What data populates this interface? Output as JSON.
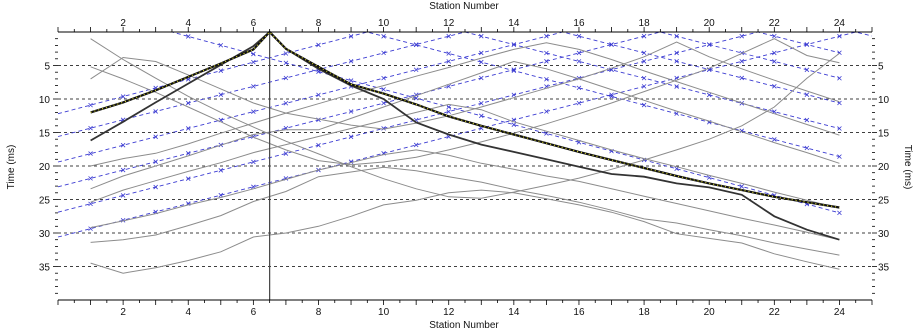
{
  "chart_data": {
    "type": "line",
    "xlabel_top": "Station Number",
    "xlabel_bottom": "Station Number",
    "ylabel_left": "Time (ms)",
    "ylabel_right": "Time (ms)",
    "xlim": [
      0,
      25
    ],
    "ylim": [
      0,
      40
    ],
    "y_inverted": true,
    "x_ticks": [
      2,
      4,
      6,
      8,
      10,
      12,
      14,
      16,
      18,
      20,
      22,
      24
    ],
    "y_ticks": [
      5,
      10,
      15,
      20,
      25,
      30,
      35
    ],
    "grid": "horizontal-dashed",
    "colors": {
      "observed": "#8c8c8c",
      "picked": "#333333",
      "model": "#3c3cd2",
      "highlight": "#d6d62a"
    },
    "shot_station": 6.5,
    "highlight_series": {
      "x": [
        1,
        2,
        3,
        4,
        5,
        6,
        6.5,
        7,
        8,
        9,
        10,
        11,
        12,
        13,
        14,
        15,
        16,
        17,
        18,
        19,
        20,
        21,
        22,
        23,
        24
      ],
      "y": [
        12,
        10.5,
        8.7,
        6.7,
        4.7,
        2.6,
        0,
        2.5,
        5.2,
        7.8,
        9.2,
        10.8,
        12.6,
        14.0,
        15.3,
        16.6,
        17.9,
        19.1,
        20.3,
        21.5,
        22.6,
        23.6,
        24.6,
        25.4,
        26.2
      ]
    },
    "picked_series": {
      "x": [
        1,
        2,
        3,
        4,
        5,
        6,
        6.5,
        7,
        8,
        9,
        10,
        11,
        12,
        13,
        14,
        15,
        16,
        17,
        18,
        19,
        20,
        21,
        22,
        23,
        24
      ],
      "y": [
        16.2,
        13.4,
        10.5,
        7.7,
        4.9,
        2.1,
        0,
        2.5,
        5.5,
        8.0,
        10.0,
        13.5,
        15.3,
        16.8,
        17.9,
        19.0,
        20.1,
        21.2,
        21.6,
        22.6,
        23.2,
        24.3,
        27.5,
        29.5,
        31.0
      ]
    },
    "observed_series": [
      {
        "x": [
          1,
          2,
          3,
          4,
          5,
          6,
          7,
          8,
          9,
          10,
          11,
          12,
          13,
          14,
          15,
          16,
          17,
          18,
          19,
          20,
          21,
          22,
          23,
          24
        ],
        "y": [
          34.5,
          36.0,
          35.2,
          34.1,
          32.8,
          30.6,
          30.0,
          29.0,
          27.5,
          25.8,
          25.1,
          24.0,
          23.6,
          24.0,
          24.9,
          25.8,
          26.9,
          28.3,
          30.1,
          30.8,
          31.5,
          33.1,
          34.3,
          35.4
        ]
      },
      {
        "x": [
          1,
          2,
          3,
          4,
          5,
          6,
          7,
          8,
          9,
          10,
          11,
          12,
          13,
          14,
          15,
          16,
          17,
          18,
          19,
          20,
          21,
          22,
          23,
          24
        ],
        "y": [
          31.4,
          31.0,
          30.3,
          28.9,
          27.4,
          25.3,
          23.8,
          21.6,
          20.9,
          20.2,
          20.7,
          21.6,
          22.4,
          23.5,
          24.4,
          25.4,
          26.6,
          27.9,
          28.5,
          29.5,
          30.4,
          31.5,
          32.4,
          33.3
        ]
      },
      {
        "x": [
          1,
          2,
          3,
          4,
          5,
          6,
          7,
          8,
          9,
          10,
          11,
          12,
          13,
          14,
          15,
          16,
          17,
          18,
          19,
          20,
          21,
          22,
          23,
          24
        ],
        "y": [
          29.2,
          28.2,
          27.1,
          25.8,
          24.7,
          23.4,
          22.0,
          20.6,
          19.5,
          18.3,
          17.6,
          18.4,
          19.6,
          20.5,
          21.5,
          22.3,
          23.4,
          24.5,
          25.6,
          26.7,
          27.8,
          28.8,
          29.9,
          31.0
        ]
      },
      {
        "x": [
          1,
          2,
          3,
          4,
          5,
          6,
          7,
          8,
          9,
          10,
          11,
          12,
          13,
          14,
          15,
          16,
          17,
          18,
          19,
          20,
          21,
          22,
          23,
          24
        ],
        "y": [
          25.4,
          23.6,
          22.2,
          20.8,
          19.5,
          18.0,
          16.8,
          15.6,
          14.4,
          13.2,
          12.0,
          10.8,
          11.6,
          13.4,
          14.8,
          16.2,
          17.6,
          18.9,
          20.1,
          21.4,
          22.6,
          23.9,
          25.1,
          26.3
        ]
      },
      {
        "x": [
          1,
          2,
          3,
          4,
          5,
          6,
          7,
          8,
          9,
          10,
          11,
          12,
          13,
          14,
          15,
          16,
          17,
          18,
          19,
          20,
          21,
          22,
          23,
          24
        ],
        "y": [
          23.4,
          21.5,
          20.0,
          18.5,
          16.9,
          15.3,
          14.6,
          14.6,
          12.9,
          11.2,
          9.5,
          7.8,
          6.1,
          4.4,
          5.5,
          7.0,
          8.6,
          10.2,
          11.8,
          13.3,
          14.9,
          16.5,
          18.0,
          19.6
        ]
      },
      {
        "x": [
          1,
          2,
          3,
          4,
          5,
          6,
          7,
          8,
          9,
          10,
          11,
          12,
          13,
          14,
          15,
          16,
          17,
          18,
          19,
          20,
          21,
          22,
          23,
          24
        ],
        "y": [
          20.0,
          18.9,
          18.1,
          16.7,
          15.1,
          13.6,
          12.1,
          10.7,
          9.3,
          8.0,
          6.6,
          5.3,
          3.9,
          2.6,
          1.6,
          2.6,
          4.1,
          5.8,
          7.4,
          9.0,
          10.6,
          12.2,
          13.8,
          15.4
        ]
      },
      {
        "x": [
          1,
          2,
          3,
          4,
          5,
          6,
          7,
          8,
          9,
          10,
          11,
          12,
          13,
          14,
          15,
          16,
          17,
          18,
          19,
          20,
          21,
          22,
          23,
          24
        ],
        "y": [
          7.0,
          3.8,
          4.4,
          6.4,
          8.5,
          10.6,
          12.1,
          13.0,
          13.9,
          14.5,
          13.6,
          12.5,
          11.2,
          9.8,
          8.4,
          7.0,
          5.4,
          3.7,
          1.5,
          3.7,
          5.5,
          7.2,
          8.8,
          10.4
        ]
      },
      {
        "x": [
          1,
          2,
          3,
          4,
          5,
          6,
          7,
          8,
          9,
          10,
          11,
          12,
          13,
          14,
          15,
          16,
          17,
          18,
          19,
          20,
          21,
          22,
          23,
          24
        ],
        "y": [
          5.2,
          7.0,
          9.0,
          11.2,
          13.4,
          15.7,
          17.6,
          19.2,
          19.8,
          19.4,
          18.7,
          17.6,
          16.4,
          15.1,
          13.7,
          12.2,
          10.6,
          8.9,
          7.2,
          5.4,
          3.2,
          1.0,
          3.5,
          4.6
        ]
      },
      {
        "x": [
          1,
          2,
          3,
          4,
          5,
          6,
          7,
          8,
          9,
          10,
          11,
          12,
          13,
          14,
          15,
          16,
          17,
          18,
          19,
          20,
          21,
          22,
          23,
          24
        ],
        "y": [
          1.0,
          4.1,
          6.9,
          9.6,
          12.0,
          14.2,
          16.3,
          18.2,
          20.1,
          21.9,
          23.4,
          24.6,
          24.8,
          23.9,
          22.9,
          21.8,
          20.5,
          19.1,
          17.6,
          16.0,
          14.0,
          11.2,
          6.9,
          3.2
        ]
      }
    ],
    "model_series": [
      {
        "x": [
          0,
          3.5,
          24
        ],
        "y": [
          0,
          0,
          27.0
        ]
      },
      {
        "x": [
          0,
          9.5,
          24
        ],
        "y": [
          12.2,
          0,
          18.6
        ]
      },
      {
        "x": [
          0,
          12.5,
          24
        ],
        "y": [
          15.6,
          0,
          14.4
        ]
      },
      {
        "x": [
          0,
          15.5,
          24
        ],
        "y": [
          19.4,
          0,
          10.6
        ]
      },
      {
        "x": [
          0,
          18.5,
          24
        ],
        "y": [
          23.1,
          0,
          6.9
        ]
      },
      {
        "x": [
          0,
          21.5,
          24
        ],
        "y": [
          26.9,
          0,
          3.1
        ]
      },
      {
        "x": [
          0,
          24.5,
          25
        ],
        "y": [
          30.6,
          0,
          0.6
        ]
      }
    ]
  }
}
